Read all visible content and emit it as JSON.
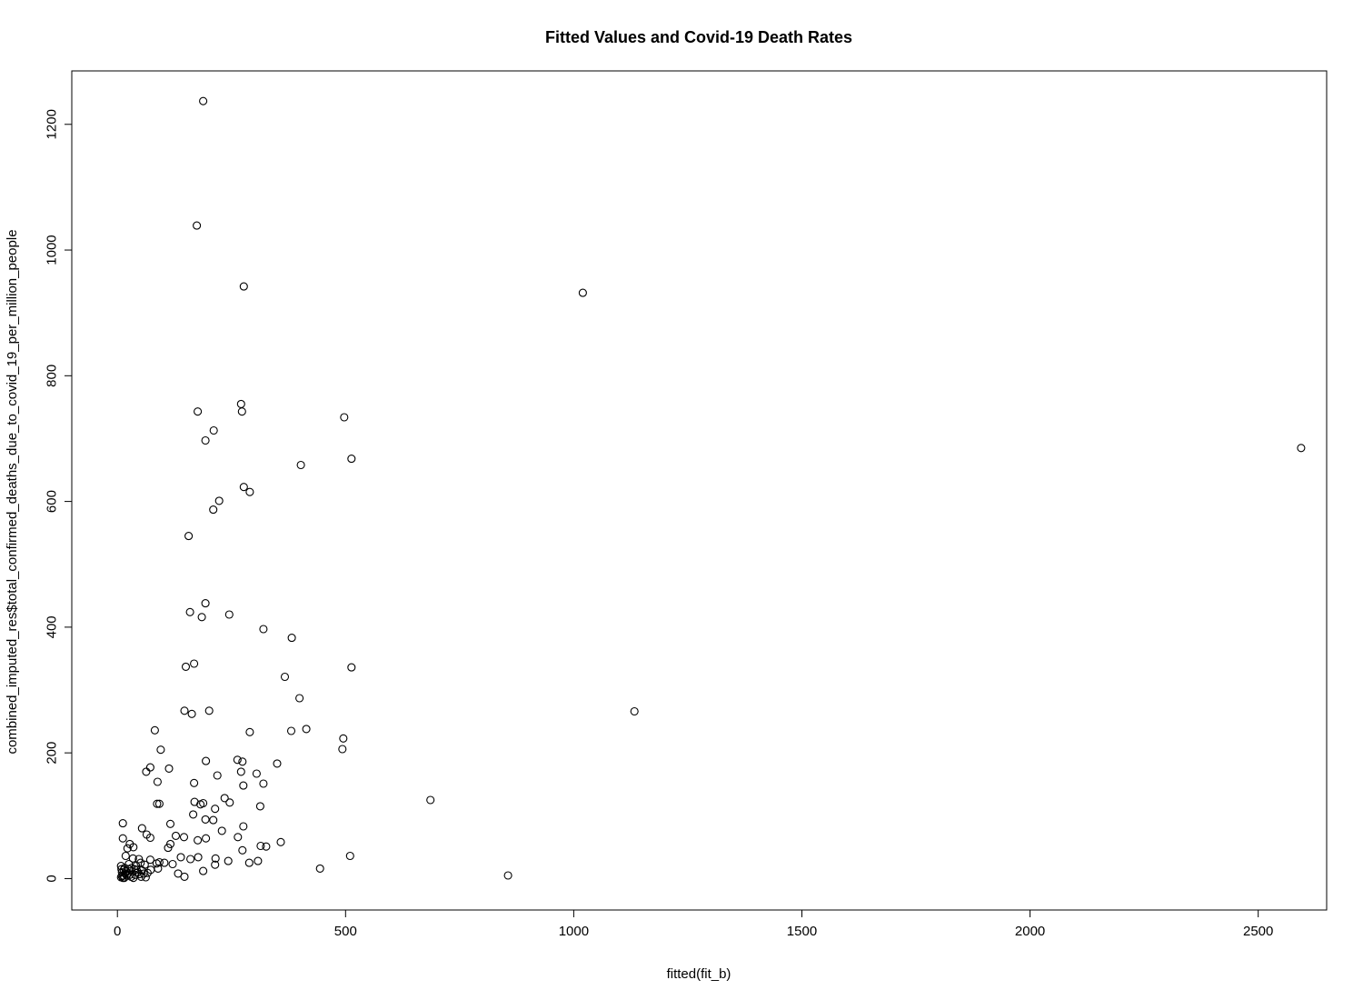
{
  "chart_data": {
    "type": "scatter",
    "title": "Fitted Values and Covid-19 Death Rates",
    "xlabel": "fitted(fit_b)",
    "ylabel": "combined_imputed_res$total_confirmed_deaths_due_to_covid_19_per_million_people",
    "xlim": [
      -100,
      2650
    ],
    "ylim": [
      -50,
      1285
    ],
    "xticks": [
      0,
      500,
      1000,
      1500,
      2000,
      2500
    ],
    "yticks": [
      0,
      200,
      400,
      600,
      800,
      1000,
      1200
    ],
    "grid": false,
    "legend": "none",
    "marker": "open-circle",
    "color": "#000000",
    "points": [
      [
        188,
        1237
      ],
      [
        174,
        1039
      ],
      [
        277,
        942
      ],
      [
        1020,
        932
      ],
      [
        2594,
        685
      ],
      [
        271,
        755
      ],
      [
        176,
        743
      ],
      [
        273,
        743
      ],
      [
        497,
        734
      ],
      [
        211,
        713
      ],
      [
        193,
        697
      ],
      [
        513,
        668
      ],
      [
        402,
        658
      ],
      [
        277,
        623
      ],
      [
        290,
        615
      ],
      [
        223,
        601
      ],
      [
        210,
        587
      ],
      [
        156,
        545
      ],
      [
        193,
        438
      ],
      [
        159,
        424
      ],
      [
        245,
        420
      ],
      [
        185,
        416
      ],
      [
        320,
        397
      ],
      [
        382,
        383
      ],
      [
        168,
        342
      ],
      [
        150,
        337
      ],
      [
        513,
        336
      ],
      [
        367,
        321
      ],
      [
        399,
        287
      ],
      [
        201,
        267
      ],
      [
        147,
        267
      ],
      [
        1133,
        266
      ],
      [
        163,
        262
      ],
      [
        82,
        236
      ],
      [
        414,
        238
      ],
      [
        290,
        233
      ],
      [
        381,
        235
      ],
      [
        495,
        223
      ],
      [
        95,
        205
      ],
      [
        493,
        206
      ],
      [
        263,
        189
      ],
      [
        194,
        187
      ],
      [
        274,
        186
      ],
      [
        350,
        183
      ],
      [
        72,
        177
      ],
      [
        113,
        175
      ],
      [
        63,
        170
      ],
      [
        271,
        170
      ],
      [
        305,
        167
      ],
      [
        219,
        164
      ],
      [
        168,
        152
      ],
      [
        320,
        151
      ],
      [
        276,
        148
      ],
      [
        88,
        154
      ],
      [
        235,
        128
      ],
      [
        169,
        122
      ],
      [
        246,
        121
      ],
      [
        188,
        120
      ],
      [
        182,
        118
      ],
      [
        87,
        119
      ],
      [
        92,
        119
      ],
      [
        686,
        125
      ],
      [
        313,
        115
      ],
      [
        214,
        111
      ],
      [
        12,
        88
      ],
      [
        116,
        87
      ],
      [
        276,
        83
      ],
      [
        54,
        80
      ],
      [
        193,
        94
      ],
      [
        210,
        93
      ],
      [
        166,
        102
      ],
      [
        229,
        76
      ],
      [
        64,
        70
      ],
      [
        128,
        68
      ],
      [
        72,
        65
      ],
      [
        146,
        66
      ],
      [
        12,
        64
      ],
      [
        264,
        66
      ],
      [
        194,
        64
      ],
      [
        176,
        61
      ],
      [
        358,
        58
      ],
      [
        116,
        55
      ],
      [
        27,
        55
      ],
      [
        35,
        50
      ],
      [
        111,
        49
      ],
      [
        22,
        48
      ],
      [
        314,
        52
      ],
      [
        326,
        51
      ],
      [
        274,
        45
      ],
      [
        510,
        36
      ],
      [
        18,
        36
      ],
      [
        139,
        34
      ],
      [
        177,
        34
      ],
      [
        34,
        32
      ],
      [
        160,
        31
      ],
      [
        47,
        31
      ],
      [
        72,
        30
      ],
      [
        215,
        32
      ],
      [
        308,
        28
      ],
      [
        243,
        28
      ],
      [
        289,
        25
      ],
      [
        92,
        26
      ],
      [
        103,
        25
      ],
      [
        51,
        25
      ],
      [
        25,
        23
      ],
      [
        86,
        24
      ],
      [
        121,
        23
      ],
      [
        60,
        22
      ],
      [
        214,
        22
      ],
      [
        41,
        20
      ],
      [
        8,
        20
      ],
      [
        16,
        17
      ],
      [
        31,
        17
      ],
      [
        89,
        16
      ],
      [
        444,
        16
      ],
      [
        73,
        14
      ],
      [
        42,
        14
      ],
      [
        54,
        13
      ],
      [
        188,
        12
      ],
      [
        133,
        8
      ],
      [
        22,
        8
      ],
      [
        10,
        10
      ],
      [
        58,
        8
      ],
      [
        39,
        6
      ],
      [
        856,
        5
      ],
      [
        147,
        3
      ],
      [
        52,
        3
      ],
      [
        8,
        2
      ],
      [
        15,
        1
      ],
      [
        62,
        2
      ],
      [
        12,
        1
      ],
      [
        20,
        5
      ],
      [
        45,
        10
      ],
      [
        30,
        3
      ],
      [
        19,
        12
      ],
      [
        37,
        15
      ],
      [
        66,
        9
      ],
      [
        10,
        4
      ],
      [
        27,
        6
      ],
      [
        35,
        1
      ],
      [
        48,
        7
      ],
      [
        14,
        14
      ],
      [
        25,
        15
      ],
      [
        17,
        8
      ],
      [
        9,
        15
      ],
      [
        13,
        5
      ]
    ]
  }
}
